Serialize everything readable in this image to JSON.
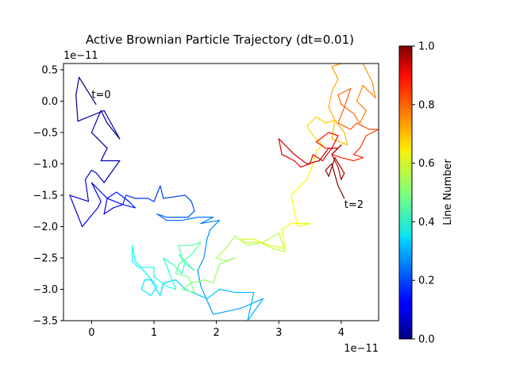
{
  "chart_data": {
    "type": "line",
    "title": "Active Brownian Particle Trajectory (dt=0.01)",
    "x_offset_label": "1e−11",
    "y_offset_label": "1e−11",
    "xlim": [
      -0.45,
      4.6
    ],
    "ylim": [
      -3.5,
      0.6
    ],
    "x_ticks": [
      0,
      1,
      2,
      3,
      4
    ],
    "y_ticks": [
      -3.5,
      -3.0,
      -2.5,
      -2.0,
      -1.5,
      -1.0,
      -0.5,
      0.0,
      0.5
    ],
    "x_tick_labels": [
      "0",
      "1",
      "2",
      "3",
      "4"
    ],
    "y_tick_labels": [
      "−3.5",
      "−3.0",
      "−2.5",
      "−2.0",
      "−1.5",
      "−1.0",
      "−0.5",
      "0.0",
      "0.5"
    ],
    "annotations": [
      {
        "text": "t=0",
        "x": 0.0,
        "y": 0.05
      },
      {
        "text": "t=2",
        "x": 4.05,
        "y": -1.7
      }
    ],
    "colorbar": {
      "label": "Line Number",
      "range": [
        0.0,
        1.0
      ],
      "ticks": [
        0.0,
        0.2,
        0.4,
        0.6,
        0.8,
        1.0
      ],
      "tick_labels": [
        "0.0",
        "0.2",
        "0.4",
        "0.6",
        "0.8",
        "1.0"
      ],
      "colormap": "jet"
    },
    "trajectory": [
      [
        0.07,
        -0.05
      ],
      [
        -0.2,
        0.38
      ],
      [
        -0.25,
        0.1
      ],
      [
        -0.22,
        -0.32
      ],
      [
        0.2,
        -0.15
      ],
      [
        0.45,
        -0.6
      ],
      [
        0.25,
        -0.35
      ],
      [
        0.15,
        -0.15
      ],
      [
        0.0,
        -0.5
      ],
      [
        0.25,
        -0.75
      ],
      [
        0.15,
        -0.95
      ],
      [
        0.45,
        -0.95
      ],
      [
        0.2,
        -1.3
      ],
      [
        0.08,
        -1.15
      ],
      [
        0.0,
        -1.1
      ],
      [
        -0.1,
        -1.25
      ],
      [
        -0.05,
        -1.6
      ],
      [
        -0.35,
        -1.5
      ],
      [
        -0.15,
        -2.0
      ],
      [
        0.1,
        -1.7
      ],
      [
        0.15,
        -1.6
      ],
      [
        0.0,
        -1.3
      ],
      [
        0.15,
        -1.45
      ],
      [
        0.25,
        -1.55
      ],
      [
        0.2,
        -1.8
      ],
      [
        0.35,
        -1.7
      ],
      [
        0.5,
        -1.65
      ],
      [
        0.25,
        -1.55
      ],
      [
        0.4,
        -1.45
      ],
      [
        0.6,
        -1.6
      ],
      [
        0.7,
        -1.7
      ],
      [
        0.5,
        -1.65
      ],
      [
        0.55,
        -1.5
      ],
      [
        0.7,
        -1.55
      ],
      [
        0.9,
        -1.55
      ],
      [
        1.0,
        -1.6
      ],
      [
        1.1,
        -1.35
      ],
      [
        1.15,
        -1.55
      ],
      [
        1.5,
        -1.5
      ],
      [
        1.6,
        -1.6
      ],
      [
        1.65,
        -1.75
      ],
      [
        1.55,
        -1.85
      ],
      [
        1.4,
        -1.85
      ],
      [
        1.2,
        -1.85
      ],
      [
        1.05,
        -1.8
      ],
      [
        1.2,
        -1.9
      ],
      [
        1.45,
        -1.9
      ],
      [
        1.7,
        -1.85
      ],
      [
        1.95,
        -1.85
      ],
      [
        1.75,
        -1.95
      ],
      [
        2.05,
        -1.9
      ],
      [
        1.9,
        -2.05
      ],
      [
        1.85,
        -2.2
      ],
      [
        1.8,
        -2.5
      ],
      [
        1.7,
        -2.7
      ],
      [
        1.75,
        -2.95
      ],
      [
        1.95,
        -3.4
      ],
      [
        2.4,
        -3.3
      ],
      [
        2.75,
        -3.15
      ],
      [
        2.5,
        -3.5
      ],
      [
        2.6,
        -3.05
      ],
      [
        2.3,
        -3.05
      ],
      [
        2.05,
        -3.0
      ],
      [
        1.85,
        -3.15
      ],
      [
        1.5,
        -3.0
      ],
      [
        1.35,
        -2.85
      ],
      [
        1.15,
        -2.9
      ],
      [
        1.1,
        -3.1
      ],
      [
        0.95,
        -2.85
      ],
      [
        0.85,
        -2.85
      ],
      [
        0.8,
        -3.0
      ],
      [
        0.95,
        -3.1
      ],
      [
        1.05,
        -2.95
      ],
      [
        0.7,
        -2.55
      ],
      [
        0.65,
        -2.3
      ],
      [
        0.65,
        -2.55
      ],
      [
        0.75,
        -2.65
      ],
      [
        1.0,
        -2.65
      ],
      [
        1.0,
        -2.8
      ],
      [
        1.2,
        -2.95
      ],
      [
        1.35,
        -3.0
      ],
      [
        1.15,
        -2.5
      ],
      [
        1.3,
        -2.6
      ],
      [
        1.45,
        -2.75
      ],
      [
        1.5,
        -2.55
      ],
      [
        1.4,
        -2.45
      ],
      [
        1.55,
        -2.6
      ],
      [
        1.65,
        -2.7
      ],
      [
        1.45,
        -2.55
      ],
      [
        1.4,
        -2.3
      ],
      [
        1.6,
        -2.3
      ],
      [
        1.75,
        -2.25
      ],
      [
        1.6,
        -2.45
      ],
      [
        1.4,
        -2.6
      ],
      [
        1.35,
        -2.75
      ],
      [
        1.55,
        -2.8
      ],
      [
        1.65,
        -3.05
      ],
      [
        1.45,
        -3.0
      ],
      [
        1.6,
        -2.9
      ],
      [
        1.8,
        -2.85
      ],
      [
        1.95,
        -2.9
      ],
      [
        2.05,
        -2.6
      ],
      [
        2.3,
        -2.5
      ],
      [
        2.15,
        -2.55
      ],
      [
        2.0,
        -2.5
      ],
      [
        2.15,
        -2.35
      ],
      [
        2.3,
        -2.15
      ],
      [
        2.5,
        -2.3
      ],
      [
        2.75,
        -2.25
      ],
      [
        3.0,
        -2.1
      ],
      [
        3.1,
        -2.4
      ],
      [
        2.9,
        -2.35
      ],
      [
        2.7,
        -2.25
      ],
      [
        2.45,
        -2.25
      ],
      [
        2.4,
        -2.2
      ],
      [
        2.6,
        -2.2
      ],
      [
        2.85,
        -2.3
      ],
      [
        3.1,
        -2.35
      ],
      [
        3.05,
        -2.05
      ],
      [
        3.2,
        -1.95
      ],
      [
        3.5,
        -1.95
      ],
      [
        3.3,
        -2.0
      ],
      [
        3.2,
        -1.5
      ],
      [
        3.3,
        -1.4
      ],
      [
        3.45,
        -1.25
      ],
      [
        3.55,
        -1.0
      ],
      [
        3.6,
        -0.8
      ],
      [
        3.7,
        -0.7
      ],
      [
        3.55,
        -0.55
      ],
      [
        3.45,
        -0.4
      ],
      [
        3.6,
        -0.25
      ],
      [
        3.75,
        -0.35
      ],
      [
        3.9,
        -0.3
      ],
      [
        3.85,
        -0.6
      ],
      [
        4.1,
        -0.7
      ],
      [
        4.05,
        -0.5
      ],
      [
        3.9,
        -0.3
      ],
      [
        3.8,
        -0.1
      ],
      [
        3.85,
        0.15
      ],
      [
        3.95,
        0.35
      ],
      [
        3.85,
        0.55
      ],
      [
        4.0,
        0.6
      ],
      [
        4.35,
        0.6
      ],
      [
        4.5,
        0.3
      ],
      [
        4.55,
        0.05
      ],
      [
        4.35,
        0.25
      ],
      [
        4.25,
        0.0
      ],
      [
        4.4,
        -0.15
      ],
      [
        4.3,
        -0.35
      ],
      [
        4.2,
        -0.2
      ],
      [
        4.0,
        -0.05
      ],
      [
        3.95,
        0.1
      ],
      [
        4.15,
        0.2
      ],
      [
        4.05,
        -0.1
      ],
      [
        3.95,
        -0.35
      ],
      [
        4.15,
        -0.45
      ],
      [
        4.25,
        -0.35
      ],
      [
        4.45,
        -0.45
      ],
      [
        4.6,
        -0.45
      ],
      [
        4.4,
        -0.55
      ],
      [
        4.3,
        -0.75
      ],
      [
        4.2,
        -0.85
      ],
      [
        4.35,
        -0.9
      ],
      [
        4.2,
        -0.95
      ],
      [
        4.0,
        -0.9
      ],
      [
        3.85,
        -0.85
      ],
      [
        3.95,
        -0.75
      ],
      [
        3.75,
        -0.75
      ],
      [
        3.6,
        -0.65
      ],
      [
        3.8,
        -0.5
      ],
      [
        3.95,
        -0.55
      ],
      [
        3.85,
        -0.75
      ],
      [
        3.7,
        -0.95
      ],
      [
        3.55,
        -0.85
      ],
      [
        3.5,
        -1.0
      ],
      [
        3.35,
        -1.05
      ],
      [
        3.25,
        -0.95
      ],
      [
        3.05,
        -0.85
      ],
      [
        3.0,
        -0.6
      ],
      [
        3.15,
        -0.75
      ],
      [
        3.25,
        -0.85
      ],
      [
        3.45,
        -1.0
      ],
      [
        3.65,
        -0.95
      ],
      [
        3.8,
        -0.75
      ],
      [
        3.95,
        -0.75
      ],
      [
        4.0,
        -0.7
      ],
      [
        3.85,
        -0.85
      ],
      [
        3.95,
        -1.05
      ],
      [
        4.0,
        -1.25
      ],
      [
        4.05,
        -1.15
      ],
      [
        3.9,
        -0.9
      ],
      [
        3.8,
        -1.2
      ],
      [
        3.75,
        -1.1
      ],
      [
        3.85,
        -1.0
      ],
      [
        3.95,
        -1.35
      ],
      [
        4.05,
        -1.55
      ]
    ]
  }
}
